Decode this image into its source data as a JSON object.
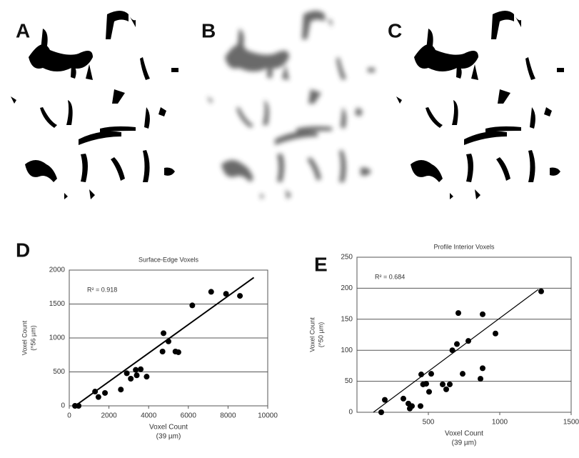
{
  "panels": {
    "labels": [
      "A",
      "B",
      "C"
    ]
  },
  "chart_data": [
    {
      "type": "scatter",
      "panel_label": "D",
      "title": "Surface-Edge Voxels",
      "annotation": "R² = 0.918",
      "xlabel": [
        "Voxel Count",
        "(39 µm)"
      ],
      "ylabel": [
        "Voxel Count",
        "(^56 µm)"
      ],
      "xlim": [
        0,
        10000
      ],
      "xticks": [
        0,
        2000,
        4000,
        6000,
        8000,
        10000
      ],
      "ylim": [
        0,
        2000
      ],
      "yticks": [
        0,
        500,
        1000,
        1500,
        2000
      ],
      "grid": true,
      "color": "#000000",
      "x": [
        290,
        470,
        1300,
        1470,
        1800,
        2600,
        2900,
        3100,
        3350,
        3400,
        3600,
        3900,
        4700,
        4750,
        5000,
        5350,
        5500,
        6200,
        7150,
        7900,
        8600
      ],
      "values": [
        0,
        0,
        210,
        130,
        190,
        240,
        480,
        400,
        530,
        450,
        540,
        430,
        800,
        1070,
        950,
        800,
        790,
        1480,
        1680,
        1650,
        1620
      ],
      "trendline": {
        "x": [
          300,
          9300
        ],
        "y": [
          0,
          1890
        ]
      }
    },
    {
      "type": "scatter",
      "panel_label": "E",
      "title": "Profile Interior Voxels",
      "annotation": "R² = 0.684",
      "xlabel": [
        "Voxel Count",
        "(39 µm)"
      ],
      "ylabel": [
        "Voxel Count",
        "(^50 µm)"
      ],
      "xlim": [
        0,
        1500
      ],
      "xticks": [
        500,
        1000,
        1500
      ],
      "ylim": [
        0,
        250
      ],
      "yticks": [
        0,
        50,
        100,
        150,
        200,
        250
      ],
      "grid": true,
      "color": "#000000",
      "x": [
        170,
        195,
        325,
        360,
        370,
        385,
        445,
        450,
        463,
        485,
        505,
        520,
        600,
        625,
        650,
        668,
        700,
        710,
        740,
        780,
        865,
        880,
        880,
        970,
        1290
      ],
      "values": [
        0,
        20,
        22,
        14,
        6,
        10,
        10,
        61,
        45,
        46,
        33,
        62,
        45,
        37,
        45,
        100,
        110,
        160,
        62,
        115,
        54,
        158,
        71,
        127,
        195
      ],
      "trendline": {
        "x": [
          115,
          1270
        ],
        "y": [
          0,
          198
        ]
      }
    }
  ]
}
